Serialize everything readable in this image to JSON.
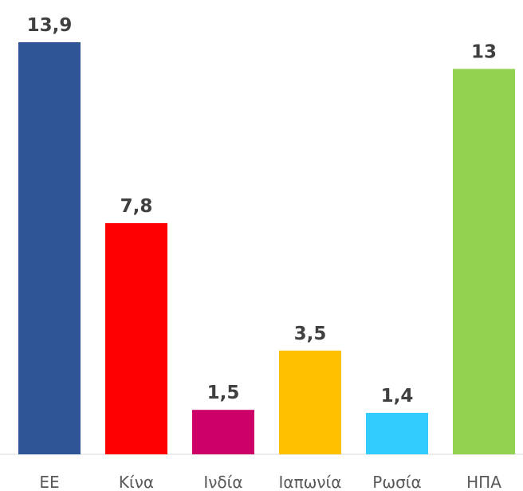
{
  "chart_data": {
    "type": "bar",
    "categories": [
      "ΕΕ",
      "Κίνα",
      "Ινδία",
      "Ιαπωνία",
      "Ρωσία",
      "ΗΠΑ"
    ],
    "values": [
      13.9,
      7.8,
      1.5,
      3.5,
      1.4,
      13
    ],
    "value_labels": [
      "13,9",
      "7,8",
      "1,5",
      "3,5",
      "1,4",
      "13"
    ],
    "colors": [
      "#2f5597",
      "#ff0000",
      "#cc0066",
      "#ffc000",
      "#33ccff",
      "#92d050"
    ]
  }
}
